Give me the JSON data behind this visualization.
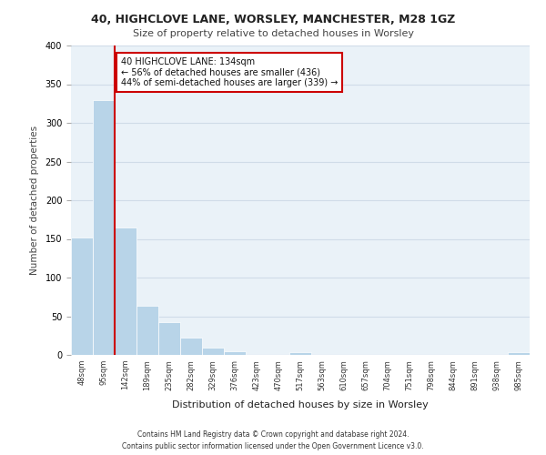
{
  "title1": "40, HIGHCLOVE LANE, WORSLEY, MANCHESTER, M28 1GZ",
  "title2": "Size of property relative to detached houses in Worsley",
  "xlabel": "Distribution of detached houses by size in Worsley",
  "ylabel": "Number of detached properties",
  "bin_labels": [
    "48sqm",
    "95sqm",
    "142sqm",
    "189sqm",
    "235sqm",
    "282sqm",
    "329sqm",
    "376sqm",
    "423sqm",
    "470sqm",
    "517sqm",
    "563sqm",
    "610sqm",
    "657sqm",
    "704sqm",
    "751sqm",
    "798sqm",
    "844sqm",
    "891sqm",
    "938sqm",
    "985sqm"
  ],
  "bar_values": [
    152,
    330,
    165,
    63,
    42,
    22,
    10,
    5,
    0,
    0,
    4,
    0,
    0,
    0,
    0,
    0,
    0,
    0,
    0,
    0,
    3
  ],
  "bar_color": "#b8d4e8",
  "bar_edge_color": "#b8d4e8",
  "property_line_x": 134,
  "property_line_bin_index": 2,
  "annotation_text": "40 HIGHCLOVE LANE: 134sqm\n← 56% of detached houses are smaller (436)\n44% of semi-detached houses are larger (339) →",
  "annotation_box_color": "#ffffff",
  "annotation_box_edge": "#cc0000",
  "line_color": "#cc0000",
  "ylim": [
    0,
    400
  ],
  "yticks": [
    0,
    50,
    100,
    150,
    200,
    250,
    300,
    350,
    400
  ],
  "grid_color": "#d0dce8",
  "background_color": "#eaf2f8",
  "footer1": "Contains HM Land Registry data © Crown copyright and database right 2024.",
  "footer2": "Contains public sector information licensed under the Open Government Licence v3.0."
}
